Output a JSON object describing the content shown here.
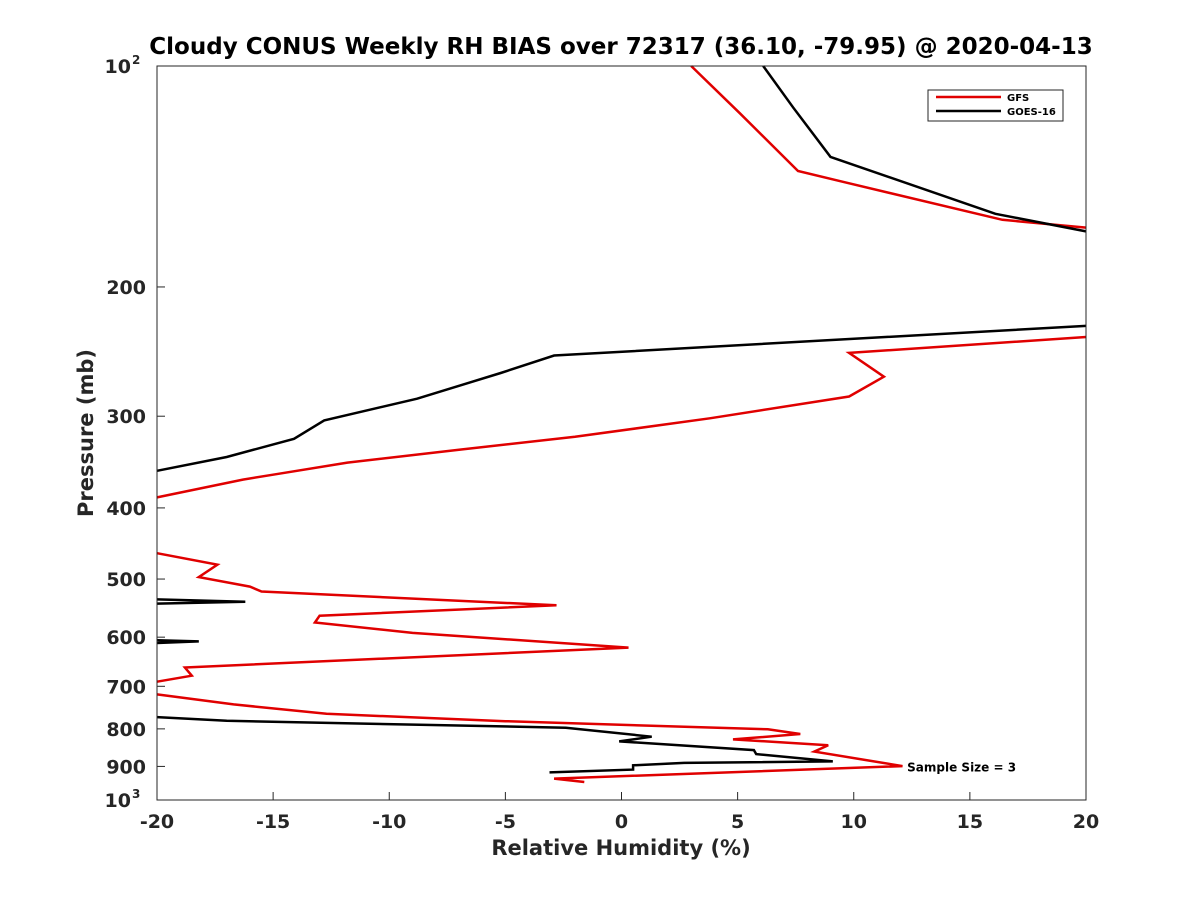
{
  "chart_data": {
    "type": "line",
    "title": "Cloudy CONUS Weekly RH BIAS over 72317 (36.10, -79.95) @ 2020-04-13",
    "xlabel": "Relative Humidity (%)",
    "ylabel": "Pressure (mb)",
    "xlim": [
      -20,
      20
    ],
    "ylim": [
      100,
      1000
    ],
    "y_scale": "log",
    "y_reversed": true,
    "grid": false,
    "legend_position": "top-right",
    "x_ticks": [
      "-20",
      "-15",
      "-10",
      "-5",
      "0",
      "5",
      "10",
      "15",
      "20"
    ],
    "y_ticks": [
      {
        "base": "10",
        "exp": "2",
        "label": "",
        "value": 100
      },
      {
        "base": "",
        "exp": "",
        "label": "200",
        "value": 200
      },
      {
        "base": "",
        "exp": "",
        "label": "300",
        "value": 300
      },
      {
        "base": "",
        "exp": "",
        "label": "400",
        "value": 400
      },
      {
        "base": "",
        "exp": "",
        "label": "500",
        "value": 500
      },
      {
        "base": "",
        "exp": "",
        "label": "600",
        "value": 600
      },
      {
        "base": "",
        "exp": "",
        "label": "700",
        "value": 700
      },
      {
        "base": "",
        "exp": "",
        "label": "800",
        "value": 800
      },
      {
        "base": "",
        "exp": "",
        "label": "900",
        "value": 900
      },
      {
        "base": "10",
        "exp": "3",
        "label": "",
        "value": 1000
      }
    ],
    "annotation": {
      "text": "Sample Size = 3",
      "x": 12.3,
      "y": 900
    },
    "series": [
      {
        "name": "GFS",
        "color": "#e00000",
        "segments": [
          [
            [
              3.0,
              100
            ],
            [
              5.1,
              116
            ],
            [
              7.6,
              139
            ],
            [
              9.6,
              144
            ],
            [
              16.4,
              162
            ],
            [
              20,
              166
            ]
          ],
          [
            [
              20,
              234
            ],
            [
              9.8,
              246
            ],
            [
              11.3,
              265
            ],
            [
              9.8,
              282
            ],
            [
              3.8,
              302
            ],
            [
              -2.0,
              320
            ],
            [
              -6.9,
              333
            ],
            [
              -11.8,
              347
            ],
            [
              -14.9,
              360
            ],
            [
              -16.3,
              366
            ],
            [
              -20,
              387
            ]
          ],
          [
            [
              -20,
              461
            ],
            [
              -17.4,
              478
            ],
            [
              -18.2,
              497
            ],
            [
              -16.0,
              512
            ],
            [
              -15.5,
              520
            ],
            [
              -2.8,
              543
            ],
            [
              -13.0,
              561
            ],
            [
              -13.2,
              573
            ],
            [
              -9.0,
              592
            ],
            [
              0.3,
              620
            ],
            [
              -18.8,
              660
            ],
            [
              -18.5,
              677
            ],
            [
              -20,
              690
            ]
          ],
          [
            [
              -20,
              718
            ],
            [
              -16.7,
              741
            ],
            [
              -12.7,
              763
            ],
            [
              -5.0,
              781
            ],
            [
              6.3,
              801
            ],
            [
              7.7,
              813
            ],
            [
              4.8,
              827
            ],
            [
              8.9,
              842
            ],
            [
              8.3,
              859
            ],
            [
              12.1,
              899
            ],
            [
              -2.9,
              935
            ],
            [
              -1.6,
              945
            ]
          ]
        ]
      },
      {
        "name": "GOES-16",
        "color": "#000000",
        "segments": [
          [
            [
              6.1,
              100
            ],
            [
              7.4,
              114
            ],
            [
              9.0,
              133
            ],
            [
              16.1,
              159
            ],
            [
              20,
              168
            ]
          ],
          [
            [
              20,
              226
            ],
            [
              -2.9,
              248
            ],
            [
              -5.2,
              262
            ],
            [
              -8.8,
              284
            ],
            [
              -12.8,
              304
            ],
            [
              -14.1,
              322
            ],
            [
              -17.0,
              341
            ],
            [
              -20,
              356
            ]
          ],
          [
            [
              -20,
              533
            ],
            [
              -16.2,
              537
            ],
            [
              -20,
              540
            ]
          ],
          [
            [
              -20,
              606
            ],
            [
              -18.2,
              608
            ],
            [
              -20,
              611
            ]
          ],
          [
            [
              -20,
              771
            ],
            [
              -17.0,
              780
            ],
            [
              -2.4,
              797
            ],
            [
              1.3,
              820
            ],
            [
              -0.1,
              832
            ],
            [
              5.7,
              855
            ],
            [
              5.8,
              866
            ],
            [
              9.1,
              886
            ],
            [
              2.7,
              890
            ],
            [
              0.5,
              897
            ],
            [
              0.5,
              909
            ],
            [
              -3.1,
              917
            ]
          ]
        ]
      }
    ]
  }
}
